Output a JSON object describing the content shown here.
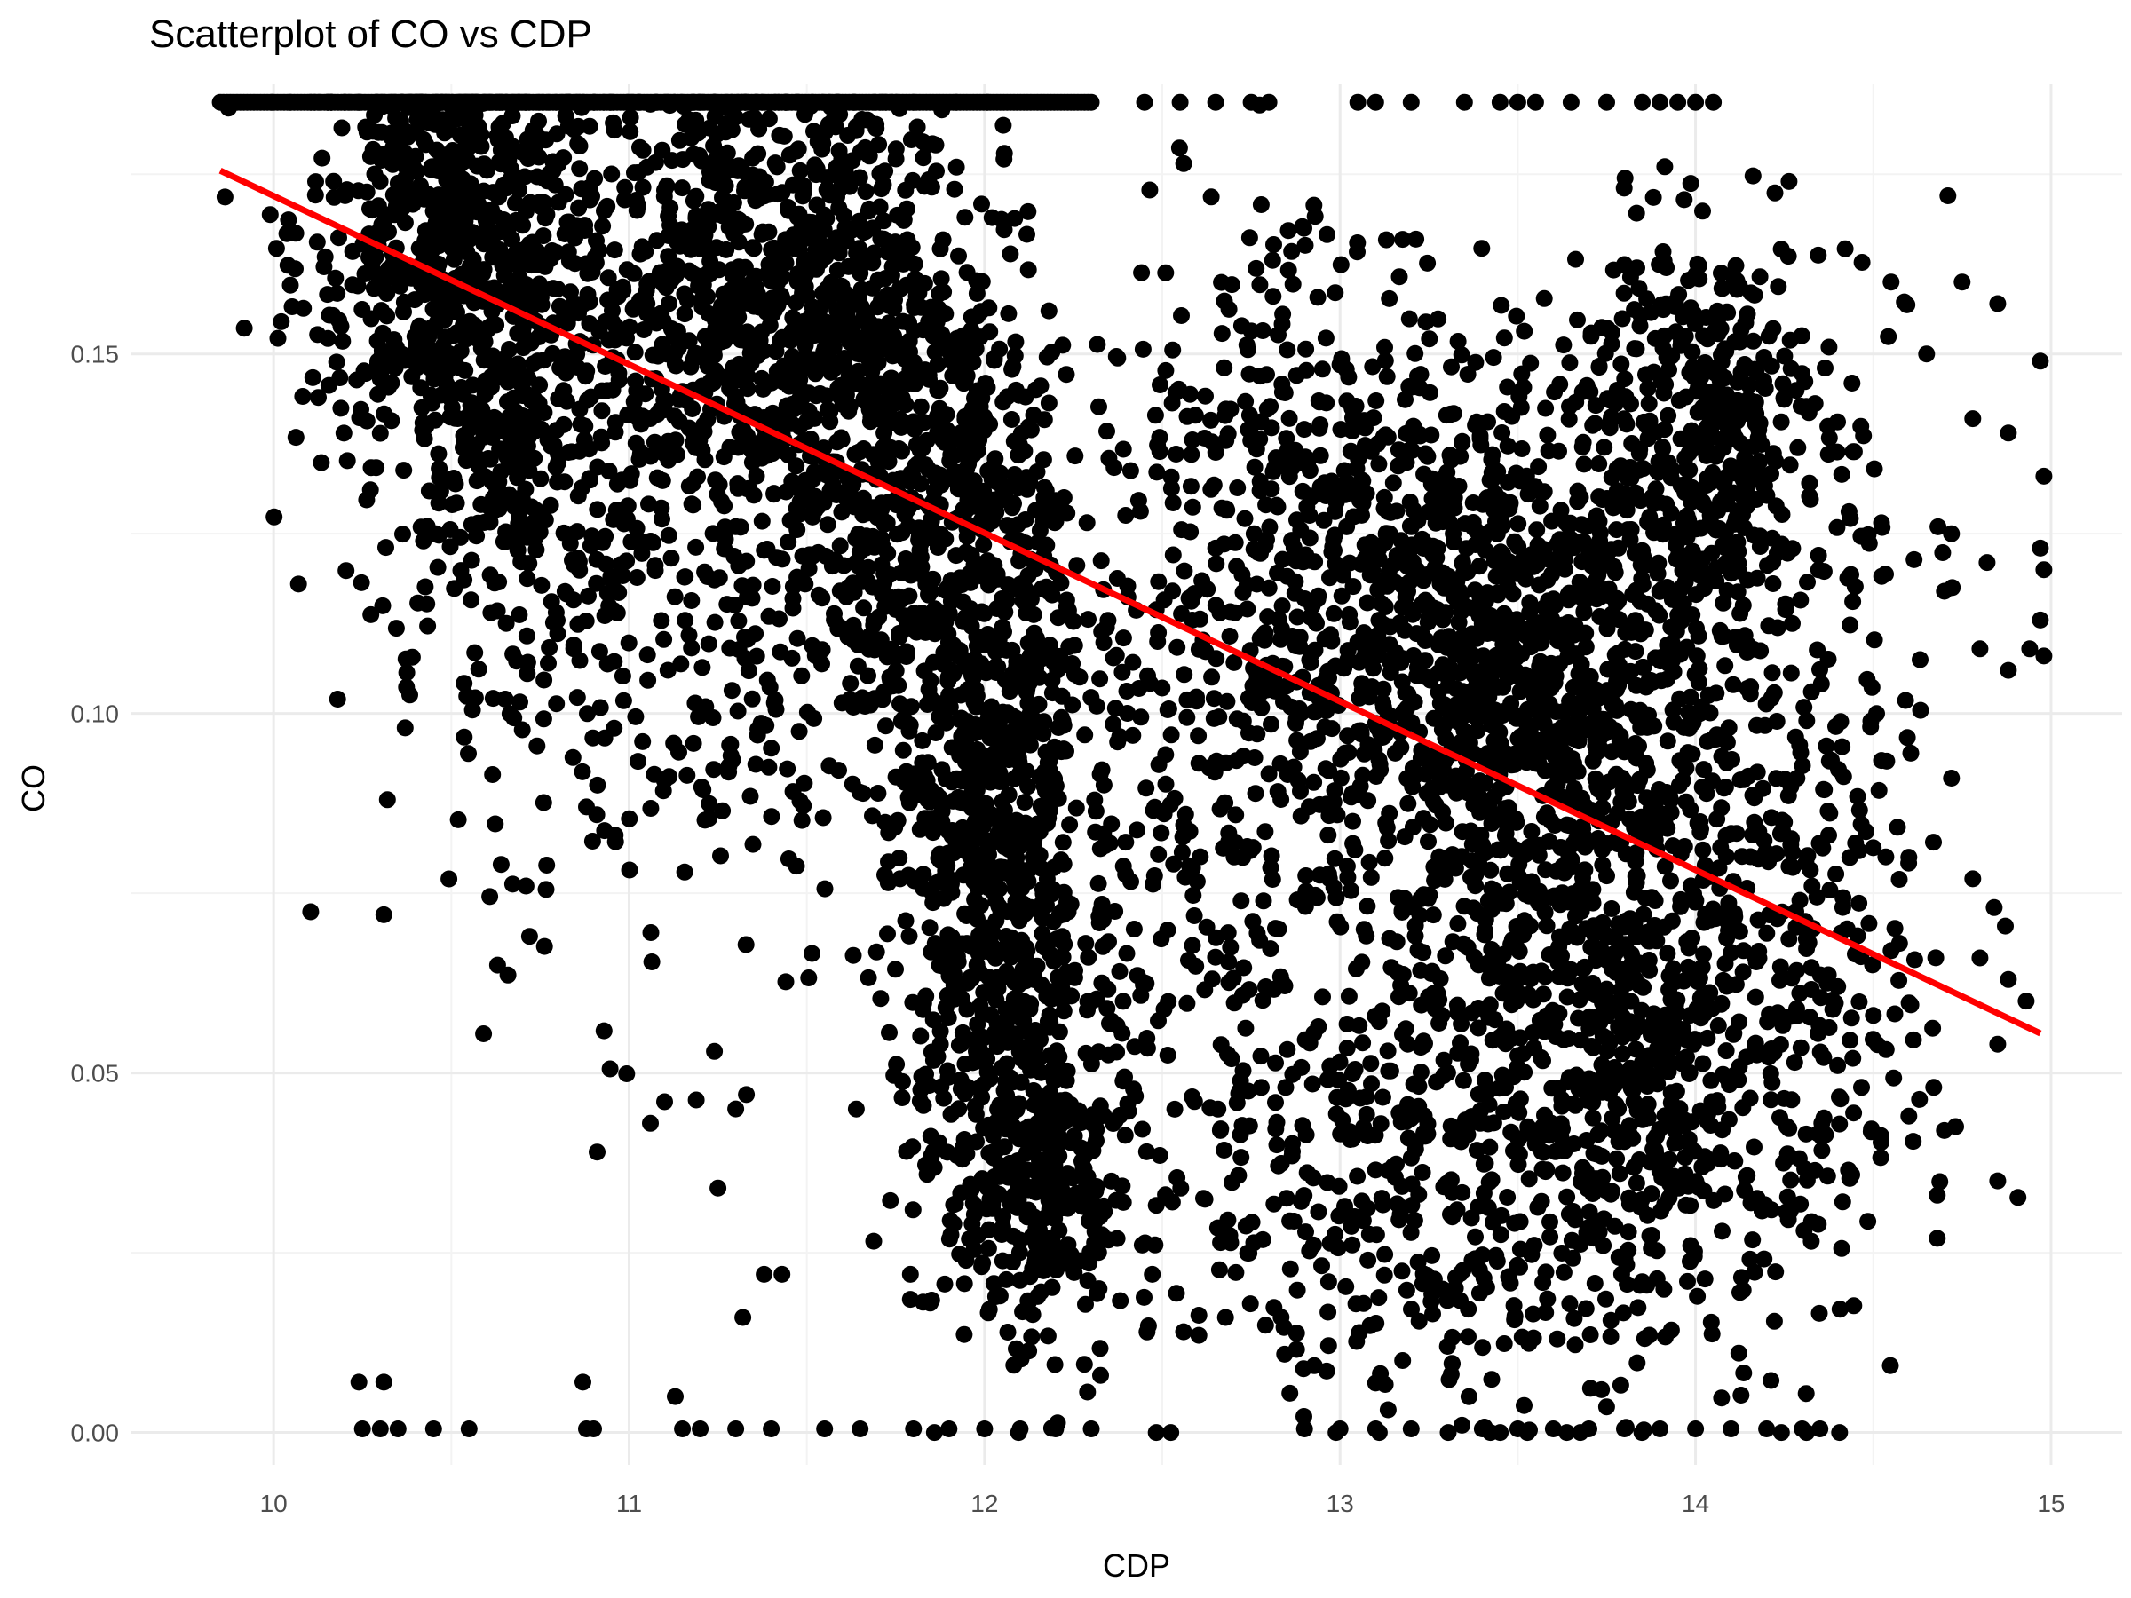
{
  "chart_data": {
    "type": "scatter",
    "title": "Scatterplot of CO vs CDP",
    "xlabel": "CDP",
    "ylabel": "CO",
    "xlim": [
      9.6,
      15.2
    ],
    "ylim": [
      -0.0045,
      0.1875
    ],
    "x_ticks": [
      "10",
      "11",
      "12",
      "13",
      "14",
      "15"
    ],
    "y_ticks": [
      "0.00",
      "0.05",
      "0.10",
      "0.15"
    ],
    "grid": true,
    "legend": "none",
    "point_color": "#000000",
    "trend_color": "#ff0000",
    "trend_line": {
      "x": [
        9.85,
        14.97
      ],
      "y": [
        0.1755,
        0.0555
      ]
    },
    "clusters": [
      {
        "cx": 10.5,
        "cy": 0.168,
        "sx": 0.22,
        "sy": 0.016,
        "n": 650
      },
      {
        "cx": 10.65,
        "cy": 0.14,
        "sx": 0.18,
        "sy": 0.017,
        "n": 350
      },
      {
        "cx": 11.3,
        "cy": 0.158,
        "sx": 0.25,
        "sy": 0.018,
        "n": 650
      },
      {
        "cx": 11.65,
        "cy": 0.145,
        "sx": 0.17,
        "sy": 0.022,
        "n": 450
      },
      {
        "cx": 11.95,
        "cy": 0.115,
        "sx": 0.16,
        "sy": 0.028,
        "n": 650
      },
      {
        "cx": 12.05,
        "cy": 0.07,
        "sx": 0.15,
        "sy": 0.022,
        "n": 450
      },
      {
        "cx": 12.15,
        "cy": 0.035,
        "sx": 0.13,
        "sy": 0.014,
        "n": 300
      },
      {
        "cx": 12.7,
        "cy": 0.09,
        "sx": 0.28,
        "sy": 0.035,
        "n": 350
      },
      {
        "cx": 13.3,
        "cy": 0.11,
        "sx": 0.3,
        "sy": 0.02,
        "n": 750
      },
      {
        "cx": 13.7,
        "cy": 0.095,
        "sx": 0.25,
        "sy": 0.02,
        "n": 550
      },
      {
        "cx": 14.0,
        "cy": 0.14,
        "sx": 0.18,
        "sy": 0.014,
        "n": 400
      },
      {
        "cx": 13.9,
        "cy": 0.05,
        "sx": 0.28,
        "sy": 0.018,
        "n": 500
      },
      {
        "cx": 13.3,
        "cy": 0.04,
        "sx": 0.35,
        "sy": 0.02,
        "n": 450
      },
      {
        "cx": 14.3,
        "cy": 0.08,
        "sx": 0.2,
        "sy": 0.035,
        "n": 250
      },
      {
        "cx": 11.1,
        "cy": 0.11,
        "sx": 0.3,
        "sy": 0.025,
        "n": 250
      },
      {
        "cx": 12.9,
        "cy": 0.135,
        "sx": 0.25,
        "sy": 0.02,
        "n": 200
      }
    ],
    "ceiling_band": {
      "x_range": [
        9.85,
        12.3
      ],
      "y": 0.185,
      "n": 260
    },
    "ceiling_points": {
      "x": [
        12.45,
        12.55,
        12.65,
        12.75,
        12.8,
        13.05,
        13.1,
        13.2,
        13.35,
        13.45,
        13.5,
        13.55,
        13.65,
        13.75,
        13.85,
        13.9,
        13.95,
        14.0,
        14.05
      ],
      "y": 0.185
    },
    "floor_points": {
      "x": [
        10.25,
        10.3,
        10.35,
        10.45,
        10.55,
        10.88,
        10.9,
        11.15,
        11.2,
        11.3,
        11.4,
        11.55,
        11.65,
        11.8,
        11.9,
        12.0,
        12.1,
        12.2,
        12.3,
        12.9,
        13.0,
        13.1,
        13.2,
        13.4,
        13.5,
        13.6,
        13.7,
        13.8,
        13.9,
        14.0,
        14.1,
        14.2,
        14.3,
        14.35
      ],
      "y": 0.0005
    },
    "outliers": [
      {
        "x": 10.07,
        "y": 0.118
      },
      {
        "x": 10.18,
        "y": 0.102
      },
      {
        "x": 10.37,
        "y": 0.098
      },
      {
        "x": 10.32,
        "y": 0.088
      },
      {
        "x": 10.31,
        "y": 0.072
      },
      {
        "x": 10.63,
        "y": 0.065
      },
      {
        "x": 10.64,
        "y": 0.079
      },
      {
        "x": 10.71,
        "y": 0.076
      },
      {
        "x": 10.72,
        "y": 0.069
      },
      {
        "x": 10.88,
        "y": 0.087
      },
      {
        "x": 10.91,
        "y": 0.039
      },
      {
        "x": 11.06,
        "y": 0.043
      },
      {
        "x": 11.1,
        "y": 0.046
      },
      {
        "x": 11.24,
        "y": 0.053
      },
      {
        "x": 11.25,
        "y": 0.034
      },
      {
        "x": 11.3,
        "y": 0.045
      },
      {
        "x": 11.33,
        "y": 0.047
      },
      {
        "x": 11.38,
        "y": 0.022
      },
      {
        "x": 11.43,
        "y": 0.022
      },
      {
        "x": 11.32,
        "y": 0.016
      },
      {
        "x": 10.24,
        "y": 0.007
      },
      {
        "x": 10.31,
        "y": 0.007
      },
      {
        "x": 10.87,
        "y": 0.007
      },
      {
        "x": 11.13,
        "y": 0.005
      },
      {
        "x": 14.71,
        "y": 0.172
      },
      {
        "x": 14.75,
        "y": 0.16
      },
      {
        "x": 14.85,
        "y": 0.157
      },
      {
        "x": 14.78,
        "y": 0.141
      },
      {
        "x": 14.88,
        "y": 0.139
      },
      {
        "x": 14.97,
        "y": 0.149
      },
      {
        "x": 14.98,
        "y": 0.133
      },
      {
        "x": 14.97,
        "y": 0.123
      },
      {
        "x": 14.98,
        "y": 0.12
      },
      {
        "x": 14.97,
        "y": 0.113
      },
      {
        "x": 14.94,
        "y": 0.109
      },
      {
        "x": 14.98,
        "y": 0.108
      },
      {
        "x": 14.88,
        "y": 0.106
      },
      {
        "x": 14.93,
        "y": 0.06
      },
      {
        "x": 14.85,
        "y": 0.035
      },
      {
        "x": 14.85,
        "y": 0.054
      },
      {
        "x": 14.68,
        "y": 0.033
      },
      {
        "x": 14.68,
        "y": 0.027
      },
      {
        "x": 14.7,
        "y": 0.042
      },
      {
        "x": 14.6,
        "y": 0.044
      },
      {
        "x": 14.55,
        "y": 0.16
      },
      {
        "x": 14.65,
        "y": 0.15
      },
      {
        "x": 14.82,
        "y": 0.121
      },
      {
        "x": 14.8,
        "y": 0.109
      },
      {
        "x": 14.72,
        "y": 0.125
      },
      {
        "x": 14.7,
        "y": 0.117
      },
      {
        "x": 14.78,
        "y": 0.077
      },
      {
        "x": 14.72,
        "y": 0.091
      },
      {
        "x": 14.8,
        "y": 0.066
      },
      {
        "x": 14.67,
        "y": 0.048
      },
      {
        "x": 14.88,
        "y": 0.063
      },
      {
        "x": 14.84,
        "y": 0.073
      },
      {
        "x": 14.4,
        "y": 0.062
      },
      {
        "x": 14.5,
        "y": 0.058
      },
      {
        "x": 14.55,
        "y": 0.067
      },
      {
        "x": 14.6,
        "y": 0.08
      }
    ]
  }
}
